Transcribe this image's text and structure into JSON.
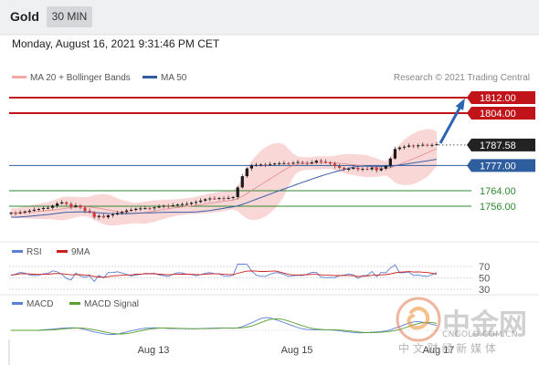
{
  "header": {
    "instrument": "Gold",
    "timeframe": "30 MIN"
  },
  "datetime": "Monday, August 16, 2021 9:31:46 PM CET",
  "legend": {
    "bb_label": "MA 20 + Bollinger Bands",
    "ma50_label": "MA 50",
    "rsi_label": "RSI",
    "rsi_ma_label": "9MA",
    "macd_label": "MACD",
    "macd_signal_label": "MACD Signal"
  },
  "credit": "Research © 2021 Trading Central",
  "watermark": {
    "logo_text": "中金网",
    "url": "CNGOLD.COM.CN",
    "tagline": "中 文 财 经 新 媒 体"
  },
  "colors": {
    "resistance": "#c0141a",
    "support": "#2f8a2f",
    "pivot": "#2e5e9e",
    "current": "#222222",
    "bollinger": "#f4a7a7",
    "ma50": "#3a5fa8",
    "rsi": "#5b7fd6",
    "rsi_ma": "#cc1e1e",
    "macd": "#5b7fd6",
    "macd_signal": "#5aa02c",
    "arrow": "#2e64b4"
  },
  "chart_data": {
    "type": "candlestick",
    "price_axis": {
      "min": 1735,
      "max": 1815
    },
    "levels": [
      {
        "name": "resistance-2",
        "value": 1812.0,
        "label": "1812.00",
        "kind": "resistance"
      },
      {
        "name": "resistance-1",
        "value": 1804.0,
        "label": "1804.00",
        "kind": "resistance"
      },
      {
        "name": "current-price",
        "value": 1787.58,
        "label": "1787.58",
        "kind": "current"
      },
      {
        "name": "pivot",
        "value": 1777.0,
        "label": "1777.00",
        "kind": "pivot"
      },
      {
        "name": "support-1",
        "value": 1764.0,
        "label": "1764.00",
        "kind": "support"
      },
      {
        "name": "support-2",
        "value": 1756.0,
        "label": "1756.00",
        "kind": "support"
      }
    ],
    "x_labels": [
      "Aug 13",
      "Aug 15",
      "Aug 17"
    ],
    "close_series": [
      1752.6,
      1752.4,
      1752.8,
      1753.3,
      1753.7,
      1754.2,
      1754.6,
      1755.1,
      1755.2,
      1756.3,
      1757.4,
      1758.0,
      1757.2,
      1755.6,
      1756.4,
      1755.3,
      1753.6,
      1752.9,
      1750.4,
      1751.0,
      1750.3,
      1751.3,
      1751.8,
      1752.5,
      1753.1,
      1753.8,
      1754.1,
      1754.7,
      1754.9,
      1755.0,
      1754.9,
      1755.4,
      1755.8,
      1756.3,
      1756.2,
      1756.5,
      1756.9,
      1757.1,
      1757.2,
      1757.8,
      1758.2,
      1758.9,
      1759.6,
      1760.0,
      1759.9,
      1760.2,
      1760.1,
      1760.3,
      1760.7,
      1765.7,
      1771.5,
      1775.5,
      1777.0,
      1777.3,
      1777.5,
      1777.4,
      1777.7,
      1778.0,
      1778.2,
      1778.2,
      1778.0,
      1778.4,
      1778.8,
      1778.4,
      1778.1,
      1778.6,
      1779.5,
      1779.0,
      1778.6,
      1778.0,
      1776.7,
      1775.8,
      1775.1,
      1775.3,
      1775.8,
      1775.0,
      1775.3,
      1775.0,
      1775.9,
      1774.5,
      1775.4,
      1776.8,
      1780.6,
      1785.5,
      1786.3,
      1786.7,
      1787.3,
      1786.9,
      1787.4,
      1787.7,
      1787.6,
      1787.6,
      1788.0
    ],
    "projection": {
      "from": 1787.58,
      "to": 1812.0
    },
    "rsi_levels": [
      70,
      50,
      30
    ],
    "x_tick_positions": [
      "Aug 13",
      "Aug 15",
      "Aug 17"
    ]
  }
}
